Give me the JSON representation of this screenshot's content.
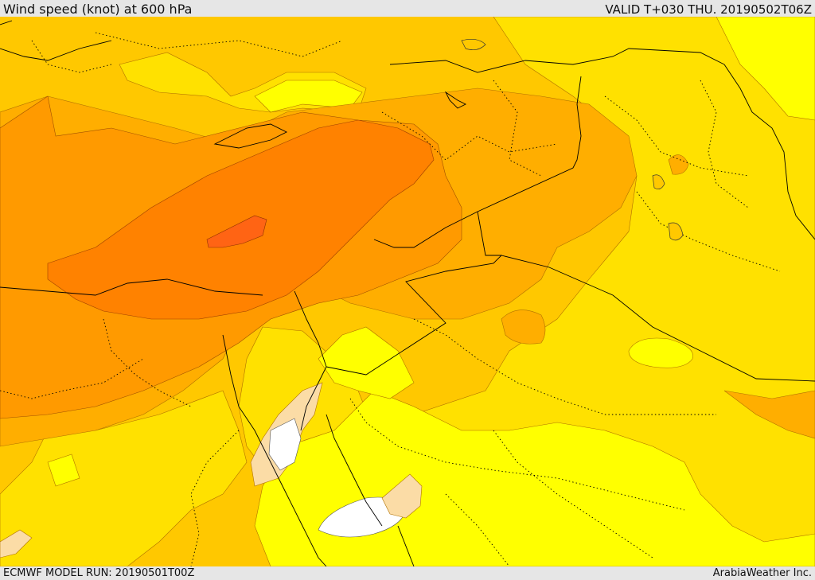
{
  "header": {
    "title": "Wind speed (knot) at 600 hPa",
    "valid": "VALID T+030 THU. 20190502T06Z"
  },
  "footer": {
    "model_run": "ECMWF MODEL RUN: 20190501T00Z",
    "credit": "ArabiaWeather Inc."
  },
  "map": {
    "colors": {
      "band_white": "#ffffff",
      "band_cream": "#fbdca6",
      "band_yellow_bright": "#ffff00",
      "band_yellow": "#ffe100",
      "band_gold": "#ffc800",
      "band_amber": "#ffae00",
      "band_orange": "#ff9a00",
      "band_dark_orange": "#ff8200",
      "band_red_orange": "#ff6414",
      "borders": "#000000"
    }
  }
}
